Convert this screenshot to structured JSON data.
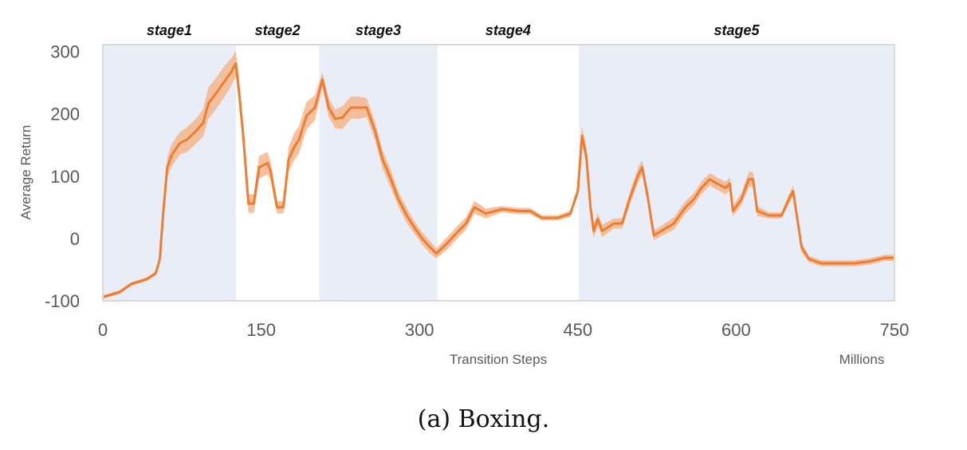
{
  "chart_data": {
    "type": "line",
    "caption": "(a) Boxing.",
    "xlabel": "Transition Steps",
    "xunit_label": "Millions",
    "ylabel": "Average Return",
    "xlim": [
      0,
      750
    ],
    "ylim": [
      -100,
      311
    ],
    "xticks": [
      0,
      150,
      300,
      450,
      600,
      750
    ],
    "yticks": [
      -100,
      0,
      100,
      200,
      300
    ],
    "stages": [
      {
        "label": "stage1",
        "start": 0,
        "end": 126,
        "shaded": true
      },
      {
        "label": "stage2",
        "start": 126,
        "end": 205,
        "shaded": false
      },
      {
        "label": "stage3",
        "start": 205,
        "end": 317,
        "shaded": true
      },
      {
        "label": "stage4",
        "start": 317,
        "end": 451,
        "shaded": false
      },
      {
        "label": "stage5",
        "start": 451,
        "end": 750,
        "shaded": true
      }
    ],
    "colors": {
      "line": "#ed7d31",
      "band": "#f4b183",
      "stage_shade": "#e9edf7",
      "frame": "#d9d9d9",
      "tick_text": "#595959"
    },
    "series": [
      {
        "name": "Average Return",
        "x": [
          0,
          16,
          27,
          42,
          50,
          54,
          57,
          61,
          65,
          73,
          80,
          88,
          95,
          100,
          106,
          114,
          122,
          126,
          129,
          133,
          138,
          143,
          148,
          156,
          159,
          165,
          171,
          176,
          181,
          186,
          193,
          201,
          208,
          214,
          220,
          227,
          235,
          242,
          250,
          258,
          265,
          273,
          280,
          288,
          295,
          303,
          310,
          316,
          326,
          337,
          344,
          352,
          363,
          378,
          394,
          405,
          416,
          431,
          443,
          450,
          454,
          458,
          462,
          465,
          469,
          473,
          484,
          492,
          499,
          507,
          511,
          516,
          522,
          529,
          541,
          552,
          560,
          567,
          575,
          582,
          590,
          594,
          597,
          605,
          612,
          616,
          620,
          631,
          643,
          650,
          654,
          662,
          669,
          681,
          696,
          711,
          726,
          741,
          750
        ],
        "y": [
          -94,
          -86,
          -73,
          -65,
          -56,
          -33,
          37,
          114,
          133,
          153,
          159,
          172,
          185,
          217,
          230,
          249,
          268,
          281,
          236,
          165,
          56,
          56,
          114,
          121,
          108,
          50,
          50,
          127,
          146,
          159,
          197,
          210,
          255,
          210,
          192,
          194,
          210,
          210,
          210,
          172,
          127,
          95,
          63,
          37,
          18,
          -1,
          -14,
          -24,
          -8,
          12,
          24,
          50,
          40,
          47,
          44,
          44,
          33,
          33,
          40,
          76,
          165,
          133,
          50,
          12,
          31,
          12,
          24,
          24,
          63,
          101,
          114,
          69,
          5,
          12,
          24,
          50,
          63,
          81,
          95,
          88,
          81,
          88,
          44,
          63,
          95,
          95,
          44,
          37,
          37,
          63,
          76,
          -14,
          -33,
          -40,
          -40,
          -40,
          -37,
          -31,
          -31
        ],
        "std": [
          3,
          3,
          3,
          3,
          3,
          5,
          10,
          15,
          18,
          18,
          20,
          20,
          22,
          25,
          25,
          25,
          22,
          20,
          20,
          20,
          15,
          15,
          18,
          18,
          15,
          10,
          10,
          20,
          22,
          22,
          22,
          20,
          12,
          15,
          15,
          18,
          18,
          18,
          15,
          15,
          15,
          15,
          12,
          12,
          10,
          10,
          10,
          8,
          10,
          10,
          10,
          10,
          8,
          5,
          5,
          5,
          4,
          4,
          5,
          8,
          15,
          15,
          15,
          12,
          10,
          10,
          8,
          8,
          10,
          12,
          12,
          10,
          8,
          8,
          10,
          10,
          10,
          10,
          10,
          10,
          10,
          10,
          8,
          10,
          12,
          12,
          8,
          5,
          5,
          8,
          8,
          8,
          5,
          5,
          5,
          5,
          5,
          5,
          5
        ]
      }
    ]
  }
}
